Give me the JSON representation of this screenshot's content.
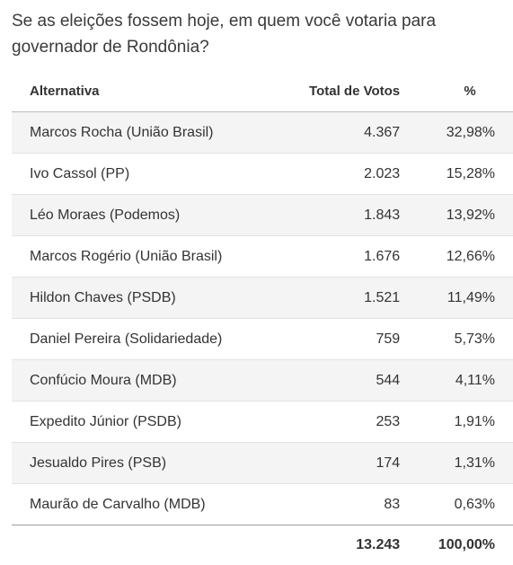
{
  "question": "Se as eleições fossem hoje, em quem você votaria para governador de Rondônia?",
  "headers": {
    "alternative": "Alternativa",
    "votes": "Total de Votos",
    "percent": "%"
  },
  "rows": [
    {
      "name": "Marcos Rocha (União Brasil)",
      "votes": "4.367",
      "percent": "32,98%"
    },
    {
      "name": "Ivo Cassol (PP)",
      "votes": "2.023",
      "percent": "15,28%"
    },
    {
      "name": "Léo Moraes (Podemos)",
      "votes": "1.843",
      "percent": "13,92%"
    },
    {
      "name": "Marcos Rogério (União Brasil)",
      "votes": "1.676",
      "percent": "12,66%"
    },
    {
      "name": "Hildon Chaves (PSDB)",
      "votes": "1.521",
      "percent": "11,49%"
    },
    {
      "name": "Daniel Pereira (Solidariedade)",
      "votes": "759",
      "percent": "5,73%"
    },
    {
      "name": "Confúcio Moura (MDB)",
      "votes": "544",
      "percent": "4,11%"
    },
    {
      "name": "Expedito Júnior (PSDB)",
      "votes": "253",
      "percent": "1,91%"
    },
    {
      "name": "Jesualdo Pires (PSB)",
      "votes": "174",
      "percent": "1,31%"
    },
    {
      "name": "Maurão de Carvalho (MDB)",
      "votes": "83",
      "percent": "0,63%"
    }
  ],
  "total": {
    "votes": "13.243",
    "percent": "100,00%"
  }
}
